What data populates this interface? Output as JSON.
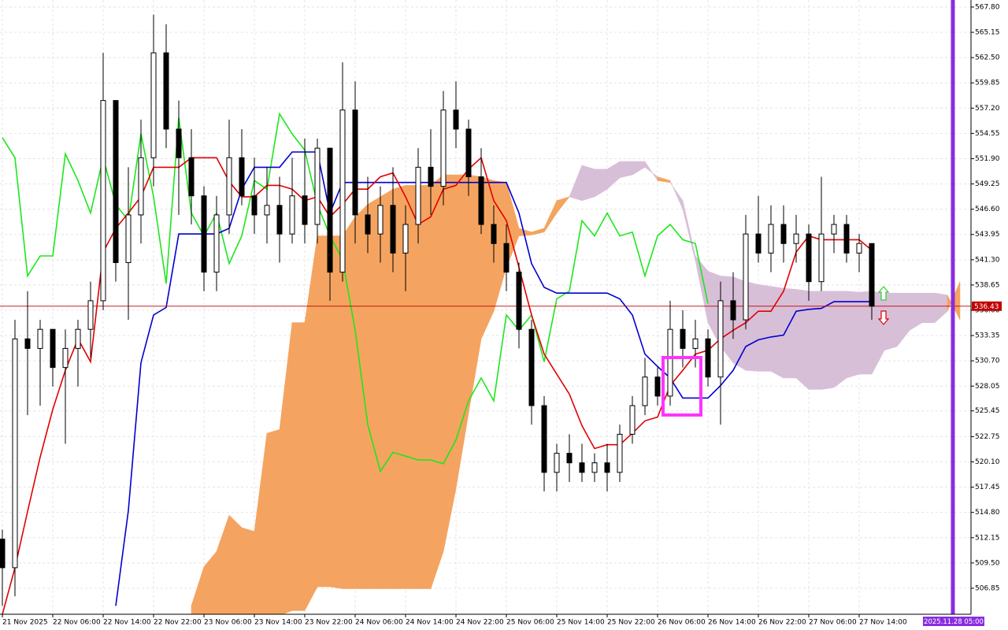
{
  "chart_data": {
    "type": "candlestick",
    "xlim": [
      -0.375,
      153.75
    ],
    "ylim": [
      504.12,
      568.54
    ],
    "grid": true,
    "xticks": [
      {
        "value": 0,
        "label": "21 Nov 2025"
      },
      {
        "value": 8,
        "label": "22 Nov 06:00"
      },
      {
        "value": 16,
        "label": "22 Nov 14:00"
      },
      {
        "value": 24,
        "label": "22 Nov 22:00"
      },
      {
        "value": 32,
        "label": "23 Nov 06:00"
      },
      {
        "value": 40,
        "label": "23 Nov 14:00"
      },
      {
        "value": 48,
        "label": "23 Nov 22:00"
      },
      {
        "value": 56,
        "label": "24 Nov 06:00"
      },
      {
        "value": 64,
        "label": "24 Nov 14:00"
      },
      {
        "value": 72,
        "label": "24 Nov 22:00"
      },
      {
        "value": 80,
        "label": "25 Nov 06:00"
      },
      {
        "value": 88,
        "label": "25 Nov 14:00"
      },
      {
        "value": 96,
        "label": "25 Nov 22:00"
      },
      {
        "value": 104,
        "label": "26 Nov 06:00"
      },
      {
        "value": 112,
        "label": "26 Nov 14:00"
      },
      {
        "value": 120,
        "label": "26 Nov 22:00"
      },
      {
        "value": 128,
        "label": "27 Nov 06:00"
      },
      {
        "value": 136,
        "label": "27 Nov 14:00"
      }
    ],
    "yticks": [
      {
        "value": 567.8,
        "label": "567.80"
      },
      {
        "value": 565.15,
        "label": "565.15"
      },
      {
        "value": 562.5,
        "label": "562.50"
      },
      {
        "value": 559.85,
        "label": "559.85"
      },
      {
        "value": 557.2,
        "label": "557.20"
      },
      {
        "value": 554.55,
        "label": "554.55"
      },
      {
        "value": 551.9,
        "label": "551.90"
      },
      {
        "value": 549.25,
        "label": "549.25"
      },
      {
        "value": 546.6,
        "label": "546.60"
      },
      {
        "value": 543.95,
        "label": "543.95"
      },
      {
        "value": 541.3,
        "label": "541.30"
      },
      {
        "value": 538.65,
        "label": "538.65"
      },
      {
        "value": 536.0,
        "label": "536.00"
      },
      {
        "value": 533.35,
        "label": "533.35"
      },
      {
        "value": 530.7,
        "label": "530.70"
      },
      {
        "value": 528.05,
        "label": "528.05"
      },
      {
        "value": 525.45,
        "label": "525.45"
      },
      {
        "value": 522.75,
        "label": "522.75"
      },
      {
        "value": 520.1,
        "label": "520.10"
      },
      {
        "value": 517.45,
        "label": "517.45"
      },
      {
        "value": 514.8,
        "label": "514.80"
      },
      {
        "value": 512.15,
        "label": "512.15"
      },
      {
        "value": 509.5,
        "label": "509.50"
      },
      {
        "value": 506.85,
        "label": "506.85"
      }
    ],
    "x": [
      0,
      2,
      4,
      6,
      8,
      10,
      12,
      14,
      16,
      18,
      20,
      22,
      24,
      26,
      28,
      30,
      32,
      34,
      36,
      38,
      40,
      42,
      44,
      46,
      48,
      50,
      52,
      54,
      56,
      58,
      60,
      62,
      64,
      66,
      68,
      70,
      72,
      74,
      76,
      78,
      80,
      82,
      84,
      86,
      88,
      90,
      92,
      94,
      96,
      98,
      100,
      102,
      104,
      106,
      108,
      110,
      112,
      114,
      116,
      118,
      120,
      122,
      124,
      126,
      128,
      130,
      132,
      134,
      136,
      138
    ],
    "candles": {
      "up_color": "#ffffff",
      "down_color": "#000000",
      "open": [
        512,
        509,
        533,
        532,
        534,
        530,
        532,
        534,
        537,
        558,
        541,
        546,
        552,
        563,
        555,
        552,
        548,
        540,
        546,
        552,
        548,
        546,
        547,
        544,
        548,
        545,
        553,
        540,
        557,
        546,
        544,
        547,
        542,
        545,
        551,
        549,
        557,
        555,
        550,
        545,
        543,
        540,
        534,
        526,
        519,
        521,
        520,
        519,
        520,
        519,
        523,
        526,
        529,
        527,
        534,
        532,
        533,
        529,
        537,
        535,
        544,
        542,
        545,
        543,
        544,
        539,
        544,
        545,
        542,
        543
      ],
      "high": [
        513,
        535,
        538,
        535,
        534,
        534,
        535,
        539,
        563,
        558,
        551,
        556,
        567,
        566,
        558,
        555,
        549,
        548,
        556,
        555,
        552,
        551,
        550,
        552,
        554,
        554,
        553,
        562,
        560,
        550,
        549,
        551,
        547,
        553,
        555,
        559,
        560,
        556,
        553,
        547,
        545,
        541,
        535,
        527,
        522,
        523,
        522,
        521,
        522,
        524,
        527,
        531,
        530,
        537,
        536,
        535,
        534,
        539,
        540,
        546,
        548,
        547,
        547,
        546,
        545,
        550,
        546,
        546,
        544,
        543
      ],
      "low": [
        505,
        506,
        525,
        526,
        528,
        522,
        528,
        531,
        536,
        539,
        535,
        543,
        549,
        553,
        546,
        545,
        538,
        538,
        544,
        547,
        544,
        543,
        541,
        543,
        543,
        543,
        537,
        539,
        543,
        542,
        541,
        540,
        538,
        543,
        546,
        547,
        553,
        548,
        544,
        541,
        538,
        532,
        524,
        517,
        517,
        518,
        518,
        518,
        517,
        518,
        522,
        525,
        526,
        526,
        530,
        530,
        528,
        524,
        533,
        534,
        541,
        540,
        541,
        541,
        537,
        538,
        542,
        541,
        540,
        535
      ],
      "close": [
        509,
        533,
        532,
        534,
        530,
        532,
        534,
        537,
        558,
        541,
        546,
        552,
        563,
        555,
        552,
        548,
        540,
        546,
        552,
        548,
        546,
        547,
        544,
        548,
        545,
        553,
        540,
        557,
        546,
        544,
        547,
        542,
        545,
        551,
        549,
        557,
        555,
        550,
        545,
        543,
        540,
        534,
        526,
        519,
        521,
        520,
        519,
        520,
        519,
        523,
        526,
        529,
        527,
        534,
        532,
        533,
        529,
        537,
        535,
        544,
        542,
        545,
        543,
        544,
        539,
        544,
        545,
        542,
        543,
        536.43
      ]
    },
    "tenkan": {
      "color": "#e00000",
      "values": [
        504.1,
        509.0,
        514.9,
        520.6,
        525.6,
        529.7,
        533.0,
        530.6,
        542.1,
        544.6,
        546.2,
        547.9,
        551.0,
        551.0,
        551.0,
        552.0,
        552.0,
        552.0,
        549.5,
        547.9,
        547.9,
        549.1,
        549.1,
        548.7,
        547.5,
        547.9,
        545.8,
        547.1,
        548.7,
        548.7,
        550.0,
        550.4,
        547.9,
        545.0,
        545.8,
        548.7,
        549.1,
        550.8,
        552.0,
        547.5,
        545.4,
        540.5,
        535.5,
        531.4,
        529.3,
        527.2,
        523.9,
        521.5,
        521.9,
        521.9,
        523.1,
        524.4,
        524.8,
        528.1,
        529.7,
        531.4,
        531.8,
        533.0,
        533.9,
        534.7,
        535.9,
        535.9,
        538.0,
        542.1,
        543.8,
        543.4,
        543.4,
        543.4,
        543.4,
        542.3
      ]
    },
    "kijun": {
      "color": "#0000d0",
      "values": [
        null,
        null,
        null,
        null,
        null,
        null,
        null,
        null,
        null,
        505.0,
        515.0,
        530.5,
        535.5,
        536.3,
        544.0,
        544.0,
        544.0,
        544.0,
        544.6,
        548.7,
        551.0,
        551.0,
        551.0,
        552.6,
        552.6,
        552.6,
        546.2,
        549.4,
        549.4,
        549.4,
        549.4,
        549.4,
        549.4,
        549.4,
        549.4,
        549.4,
        549.4,
        549.4,
        549.4,
        549.4,
        549.4,
        546.2,
        540.9,
        538.4,
        537.8,
        537.8,
        537.8,
        537.8,
        537.8,
        537.2,
        535.5,
        531.4,
        530.1,
        528.9,
        526.8,
        526.8,
        526.8,
        528.1,
        529.7,
        532.2,
        532.9,
        533.2,
        533.4,
        535.9,
        536.1,
        536.2,
        536.9,
        536.9,
        536.9,
        536.9
      ]
    },
    "chikou": {
      "color": "#1ee61e",
      "values": [
        554.1,
        552.0,
        539.6,
        541.7,
        541.7,
        552.4,
        549.6,
        546.2,
        552.0,
        547.1,
        545.4,
        554.5,
        547.9,
        538.8,
        556.2,
        546.2,
        543.8,
        546.2,
        540.9,
        543.8,
        549.6,
        548.7,
        556.6,
        554.5,
        552.8,
        547.1,
        543.8,
        541.3,
        533.9,
        524.0,
        519.1,
        521.1,
        520.7,
        520.3,
        520.3,
        519.9,
        522.4,
        526.5,
        528.9,
        526.5,
        535.5,
        533.9,
        535.5,
        530.6,
        537.2,
        538.0,
        545.4,
        543.8,
        546.2,
        543.8,
        544.2,
        539.6,
        543.8,
        545.0,
        543.4,
        543.0,
        536.7,
        null,
        null,
        null,
        null,
        null,
        null,
        null,
        null,
        null,
        null,
        null,
        null,
        null
      ]
    },
    "cloud": {
      "bear_color": "#f4a460",
      "bull_color": "#d8bfd8",
      "x": [
        30,
        32,
        34,
        36,
        38,
        40,
        42,
        44,
        46,
        48,
        50,
        52,
        54,
        56,
        58,
        60,
        62,
        64,
        66,
        68,
        70,
        72,
        74,
        76,
        78,
        80,
        82,
        84,
        86,
        88,
        90,
        92,
        94,
        96,
        98,
        100,
        102,
        104,
        106,
        108,
        110,
        112,
        114,
        116,
        118,
        120,
        122,
        124,
        126,
        128,
        130,
        132,
        134,
        136,
        138,
        140,
        142,
        144,
        146,
        148,
        150,
        152
      ],
      "span_a": [
        503.0,
        503.0,
        503.5,
        503.5,
        504.0,
        504.0,
        504.0,
        504.0,
        504.5,
        504.5,
        507.0,
        507.0,
        506.8,
        506.8,
        506.8,
        506.8,
        506.8,
        506.8,
        506.8,
        506.8,
        510.7,
        517.3,
        525.2,
        533.0,
        535.9,
        540.5,
        543.8,
        543.9,
        544.2,
        546.2,
        547.9,
        551.2,
        550.8,
        550.8,
        551.6,
        551.6,
        551.6,
        549.6,
        549.4,
        547.5,
        541.7,
        540.1,
        539.6,
        539.5,
        539.0,
        538.7,
        538.5,
        538.3,
        538.2,
        538.0,
        538.0,
        538.0,
        538.0,
        537.9,
        538.0,
        537.8,
        537.8,
        537.8,
        537.8,
        537.8,
        537.6,
        535.0
      ],
      "span_b": [
        505.0,
        509.1,
        510.7,
        514.5,
        513.2,
        512.8,
        523.1,
        523.5,
        534.7,
        534.7,
        543.8,
        543.8,
        543.8,
        545.8,
        547.1,
        547.9,
        548.7,
        549.1,
        549.1,
        549.1,
        550.2,
        550.2,
        550.2,
        550.0,
        549.6,
        549.4,
        544.6,
        544.2,
        544.6,
        547.5,
        547.9,
        547.5,
        547.9,
        548.7,
        549.9,
        550.2,
        551.0,
        550.0,
        549.6,
        546.6,
        541.2,
        534.7,
        532.2,
        530.5,
        529.7,
        529.6,
        529.6,
        528.9,
        528.9,
        527.7,
        527.7,
        527.9,
        528.9,
        529.3,
        529.3,
        531.8,
        532.2,
        533.9,
        534.7,
        534.7,
        535.9,
        539.0
      ]
    },
    "last_price": 536.43,
    "price_color": "#c00000",
    "time_label": "2025.11.28 05:00"
  }
}
